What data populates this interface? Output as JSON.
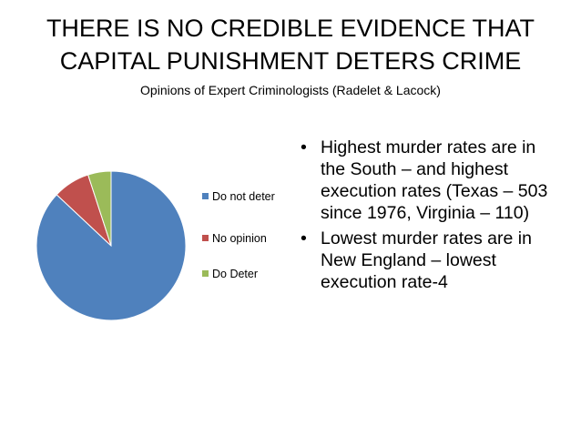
{
  "title_lines": [
    "THERE IS NO CREDIBLE EVIDENCE THAT",
    "CAPITAL PUNISHMENT DETERS CRIME"
  ],
  "subtitle": "Opinions of Expert Criminologists (Radelet & Lacock)",
  "bullets": [
    "Highest murder rates are in the South – and highest execution rates (Texas – 503 since 1976, Virginia – 110)",
    "Lowest murder rates are in New England – lowest execution rate-4"
  ],
  "chart_data": {
    "type": "pie",
    "categories": [
      "Do not deter",
      "No opinion",
      "Do Deter"
    ],
    "values": [
      87,
      8,
      5
    ],
    "colors": [
      "#4f81bd",
      "#c0504d",
      "#9bbb59"
    ]
  }
}
